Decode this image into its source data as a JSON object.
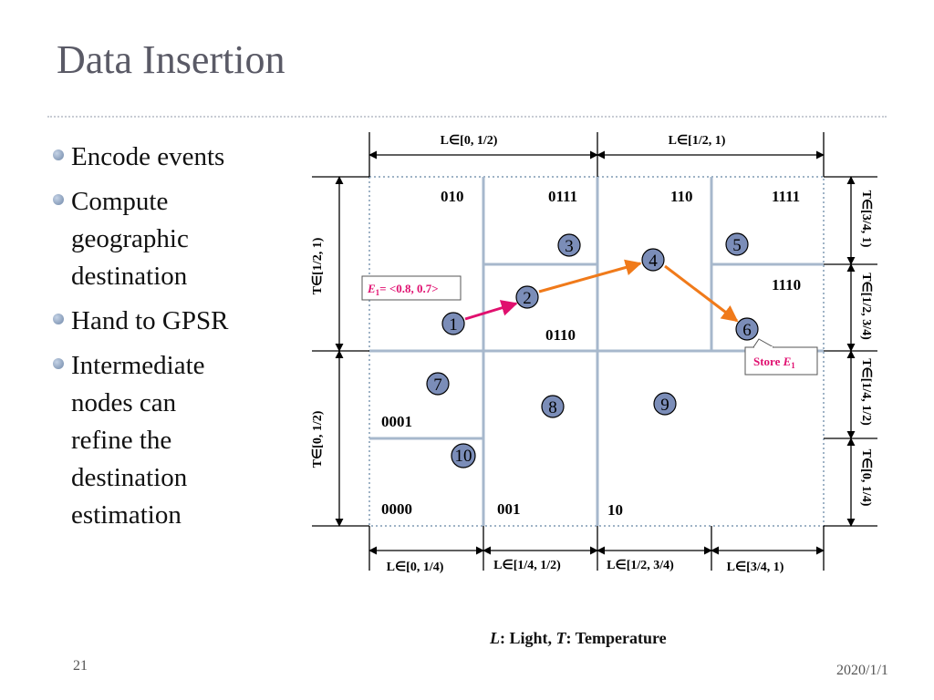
{
  "title": "Data Insertion",
  "bullets": [
    {
      "lines": [
        "Encode events"
      ]
    },
    {
      "lines": [
        "Compute",
        "geographic",
        "destination"
      ]
    },
    {
      "lines": [
        "Hand to GPSR"
      ]
    },
    {
      "lines": [
        "Intermediate",
        "nodes can",
        "refine the",
        "destination",
        "estimation"
      ]
    }
  ],
  "top_ranges": [
    "L∈[0, 1/2)",
    "L∈[1/2, 1)"
  ],
  "bottom_ranges": [
    "L∈[0, 1/4)",
    "L∈[1/4, 1/2)",
    "L∈[1/2, 3/4)",
    "L∈[3/4, 1)"
  ],
  "left_ranges": [
    "T∈[1/2, 1)",
    "T∈[0, 1/2)"
  ],
  "right_ranges": [
    "T∈[3/4, 1)",
    "T∈[1/2, 3/4)",
    "T∈[1/4, 1/2)",
    "T∈[0, 1/4)"
  ],
  "cell_codes": {
    "c010": "010",
    "c0111": "0111",
    "c110": "110",
    "c1111": "1111",
    "c1110": "1110",
    "c0110": "0110",
    "c0001": "0001",
    "c0000": "0000",
    "c001": "001",
    "c10": "10"
  },
  "nodes": [
    "1",
    "2",
    "3",
    "4",
    "5",
    "6",
    "7",
    "8",
    "9",
    "10"
  ],
  "callouts": {
    "event_prefix": "E",
    "event_sub": "1",
    "event_value": "= <0.8, 0.7>",
    "store_prefix": "Store ",
    "store_event": "E",
    "store_sub": "1"
  },
  "legend": {
    "l_sym": "L",
    "l_text": ": Light, ",
    "t_sym": "T",
    "t_text": ": Temperature"
  },
  "page_number": "21",
  "date": "2020/1/1",
  "colors": {
    "node_fill": "#7b8db8",
    "grid_line": "#a7b8cc",
    "pink_arrow": "#e0106e",
    "orange_arrow": "#f07a1a",
    "title_text": "#5a5a66"
  }
}
